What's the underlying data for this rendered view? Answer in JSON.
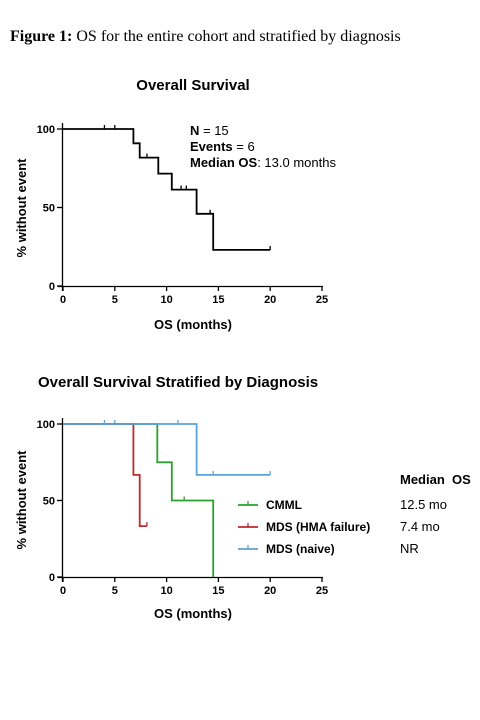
{
  "caption": {
    "prefix": "Figure 1:",
    "text": "OS for the entire cohort and stratified by diagnosis"
  },
  "chart_data": [
    {
      "type": "line",
      "subtype": "kaplan-meier",
      "title": "Overall Survival",
      "xlabel": "OS (months)",
      "ylabel": "% without event",
      "xlim": [
        0,
        25
      ],
      "ylim": [
        0,
        100
      ],
      "xticks": [
        0,
        5,
        10,
        15,
        20,
        25
      ],
      "yticks": [
        0,
        50,
        100
      ],
      "annotations": [
        {
          "label": "N",
          "value": " = 15"
        },
        {
          "label": "Events",
          "value": " = 6"
        },
        {
          "label": "Median OS",
          "value": ": 13.0 months"
        }
      ],
      "series": [
        {
          "color": "#000000",
          "steps": [
            [
              0,
              100
            ],
            [
              6.8,
              100
            ],
            [
              6.8,
              90.9
            ],
            [
              7.4,
              90.9
            ],
            [
              7.4,
              81.8
            ],
            [
              9.2,
              81.8
            ],
            [
              9.2,
              71.6
            ],
            [
              10.5,
              71.6
            ],
            [
              10.5,
              61.4
            ],
            [
              12.9,
              61.4
            ],
            [
              12.9,
              46.0
            ],
            [
              14.5,
              46.0
            ],
            [
              14.5,
              23.0
            ],
            [
              20,
              23.0
            ]
          ],
          "censors": [
            [
              4,
              100
            ],
            [
              5,
              100
            ],
            [
              8.1,
              81.8
            ],
            [
              11.4,
              61.4
            ],
            [
              11.9,
              61.4
            ],
            [
              14.2,
              46.0
            ],
            [
              20,
              23.0
            ]
          ]
        }
      ]
    },
    {
      "type": "line",
      "subtype": "kaplan-meier",
      "title": "Overall Survival Stratified by Diagnosis",
      "xlabel": "OS (months)",
      "ylabel": "% without event",
      "xlim": [
        0,
        25
      ],
      "ylim": [
        0,
        100
      ],
      "xticks": [
        0,
        5,
        10,
        15,
        20,
        25
      ],
      "yticks": [
        0,
        50,
        100
      ],
      "median_header": "Median  OS",
      "series": [
        {
          "name": "CMML",
          "median": "12.5 mo",
          "color": "#2ca02c",
          "steps": [
            [
              0,
              100
            ],
            [
              9.1,
              100
            ],
            [
              9.1,
              75
            ],
            [
              10.5,
              75
            ],
            [
              10.5,
              50
            ],
            [
              14.5,
              50
            ],
            [
              14.5,
              0
            ]
          ],
          "censors": [
            [
              11.7,
              50
            ]
          ]
        },
        {
          "name": "MDS (HMA failure)",
          "median": "7.4 mo",
          "color": "#c0282d",
          "steps": [
            [
              0,
              100
            ],
            [
              6.8,
              100
            ],
            [
              6.8,
              66.7
            ],
            [
              7.4,
              66.7
            ],
            [
              7.4,
              33.3
            ],
            [
              8.1,
              33.3
            ]
          ],
          "censors": [
            [
              8.1,
              33.3
            ]
          ]
        },
        {
          "name": "MDS (naive)",
          "median": "NR",
          "color": "#5ba3d9",
          "steps": [
            [
              0,
              100
            ],
            [
              12.9,
              100
            ],
            [
              12.9,
              66.7
            ],
            [
              20,
              66.7
            ]
          ],
          "censors": [
            [
              4,
              100
            ],
            [
              5,
              100
            ],
            [
              11.1,
              100
            ],
            [
              14.5,
              66.7
            ],
            [
              20,
              66.7
            ]
          ]
        }
      ]
    }
  ]
}
